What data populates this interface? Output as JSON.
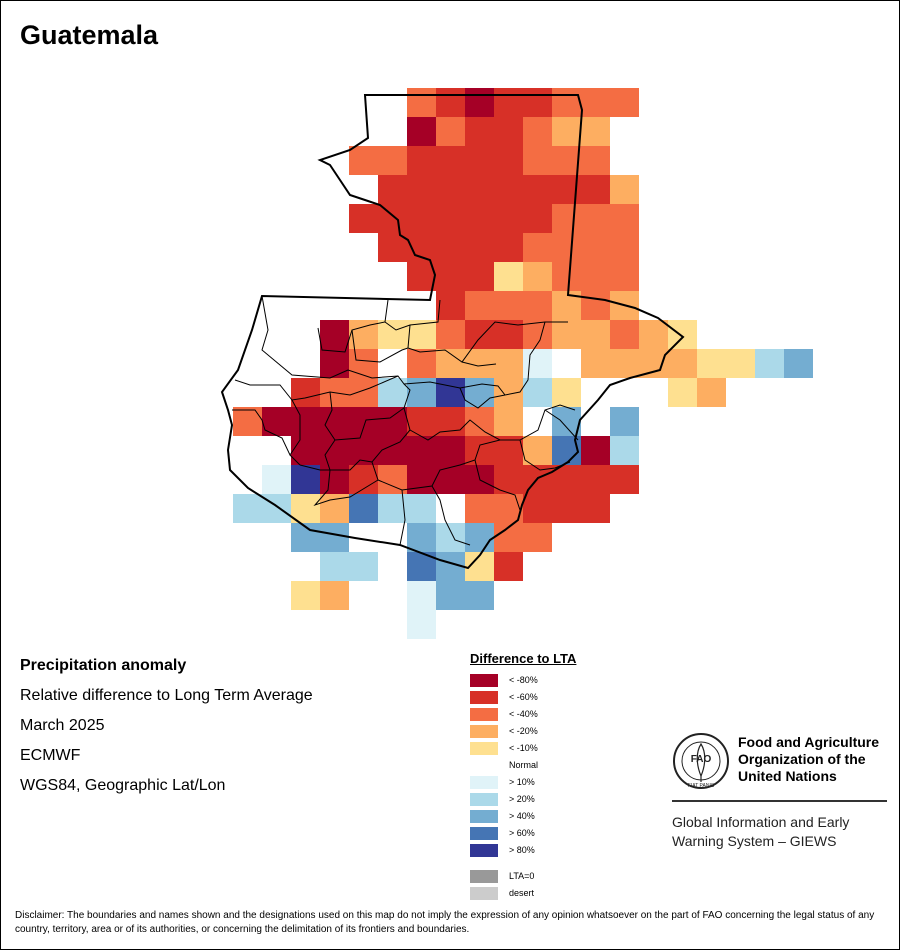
{
  "map": {
    "title": "Guatemala",
    "country_border_color": "#000000",
    "anomaly_grid": {
      "description_rows_top_to_bottom": "classes by grid cell, west to east",
      "row_start_cell": [
        5,
        5,
        4,
        5,
        4,
        5,
        6,
        7,
        3,
        3,
        0,
        0,
        0,
        0,
        0,
        0,
        1,
        2,
        3
      ],
      "rows": [
        [
          "",
          "<-40%",
          "<-60%",
          "<-80%",
          "<-60%",
          "<-60%",
          "<-40%",
          "<-40%",
          "<-40%"
        ],
        [
          "",
          "<-80%",
          "<-40%",
          "<-60%",
          "<-60%",
          "<-40%",
          "<-20%",
          "<-20%"
        ],
        [
          "<-40%",
          "<-40%",
          "<-60%",
          "<-60%",
          "<-60%",
          "<-60%",
          "<-40%",
          "<-40%",
          "<-40%",
          "Normal"
        ],
        [
          "<-60%",
          "<-60%",
          "<-60%",
          "<-60%",
          "<-60%",
          "<-60%",
          "<-60%",
          "<-60%",
          "<-20%"
        ],
        [
          "<-60%",
          "<-60%",
          "<-60%",
          "<-60%",
          "<-60%",
          "<-60%",
          "<-60%",
          "<-40%",
          "<-40%",
          "<-40%"
        ],
        [
          "<-60%",
          "<-60%",
          "<-60%",
          "<-60%",
          "<-60%",
          "<-40%",
          "<-40%",
          "<-40%",
          "<-40%"
        ],
        [
          "<-60%",
          "<-60%",
          "<-60%",
          "<-10%",
          "<-20%",
          "<-40%",
          "<-40%",
          "<-40%"
        ],
        [
          "<-60%",
          "<-40%",
          "<-40%",
          "<-40%",
          "<-20%",
          "<-40%",
          "<-20%"
        ],
        [
          "<-80%",
          "<-20%",
          "<-10%",
          "<-10%",
          "<-40%",
          "<-60%",
          "<-60%",
          "<-40%",
          "<-20%",
          "<-20%",
          "<-40%",
          "<-20%",
          "<-10%"
        ],
        [
          "<-80%",
          "<-40%",
          "Normal",
          "<-40%",
          "<-20%",
          "<-20%",
          "<-20%",
          ">10%",
          "Normal",
          "<-20%",
          "<-20%",
          "<-20%",
          "<-20%",
          "<-10%",
          "<-10%",
          ">20%",
          ">40%"
        ],
        [
          "Normal",
          "",
          "<-60%",
          "<-40%",
          "<-40%",
          ">20%",
          ">40%",
          ">80%",
          ">40%",
          "<-20%",
          ">20%",
          "<-10%",
          "Normal",
          "Normal",
          "Normal",
          "<-10%",
          "<-20%"
        ],
        [
          "<-40%",
          "<-80%",
          "<-80%",
          "<-80%",
          "<-80%",
          "<-80%",
          "<-60%",
          "<-60%",
          "<-40%",
          "<-20%",
          "Normal",
          ">40%",
          "Normal",
          ">40%"
        ],
        [
          "Normal",
          "Normal",
          "<-80%",
          "<-80%",
          "<-80%",
          "<-80%",
          "<-80%",
          "<-80%",
          "<-60%",
          "<-60%",
          "<-20%",
          ">60%",
          "<-80%",
          ">20%"
        ],
        [
          "Normal",
          ">10%",
          ">80%",
          "<-80%",
          "<-60%",
          "<-40%",
          "<-80%",
          "<-80%",
          "<-80%",
          "<-60%",
          "<-60%",
          "<-60%",
          "<-60%",
          "<-60%"
        ],
        [
          ">20%",
          ">20%",
          "<-10%",
          "<-20%",
          ">60%",
          ">20%",
          ">20%",
          "Normal",
          "<-40%",
          "<-40%",
          "<-60%",
          "<-60%",
          "<-60%"
        ],
        [
          "Normal",
          "Normal",
          ">40%",
          ">40%",
          "Normal",
          "Normal",
          ">40%",
          ">20%",
          ">40%",
          "<-40%",
          "<-40%"
        ],
        [
          "Normal",
          "Normal",
          ">20%",
          ">20%",
          "Normal",
          ">60%",
          ">40%",
          "<-10%",
          "<-60%"
        ],
        [
          "<-10%",
          "<-20%",
          "Normal",
          "Normal",
          ">10%",
          ">40%",
          ">40%"
        ],
        [
          "",
          "",
          "",
          ">10%"
        ]
      ]
    }
  },
  "info": {
    "heading": "Precipitation anomaly",
    "line1": "Relative difference to Long Term Average",
    "line2": "March 2025",
    "line3": "ECMWF",
    "line4": "WGS84, Geographic Lat/Lon"
  },
  "legend": {
    "title": "Difference to LTA",
    "items": [
      {
        "label": "< -80%",
        "color": "#a50026"
      },
      {
        "label": "< -60%",
        "color": "#d73027"
      },
      {
        "label": "< -40%",
        "color": "#f46d43"
      },
      {
        "label": "< -20%",
        "color": "#fdae61"
      },
      {
        "label": "< -10%",
        "color": "#fee090"
      },
      {
        "label": "Normal",
        "color": "#ffffff"
      },
      {
        "label": "> 10%",
        "color": "#e0f3f8"
      },
      {
        "label": "> 20%",
        "color": "#abd9e9"
      },
      {
        "label": "> 40%",
        "color": "#74add1"
      },
      {
        "label": "> 60%",
        "color": "#4575b4"
      },
      {
        "label": "> 80%",
        "color": "#313695"
      },
      {
        "label": "LTA=0",
        "color": "#999999"
      },
      {
        "label": "desert",
        "color": "#cccccc"
      }
    ]
  },
  "fao": {
    "logo_text": "FAO",
    "logo_motto": "FIAT PANIS",
    "name": "Food and Agriculture Organization of the United Nations",
    "giews": "Global Information and Early Warning System – GIEWS"
  },
  "disclaimer": "Disclaimer: The boundaries and names shown and the designations used on this map do not imply the expression of any opinion whatsoever on the part of FAO concerning the legal status of any country, territory, area or of its authorities, or concerning the delimitation of its frontiers and boundaries."
}
